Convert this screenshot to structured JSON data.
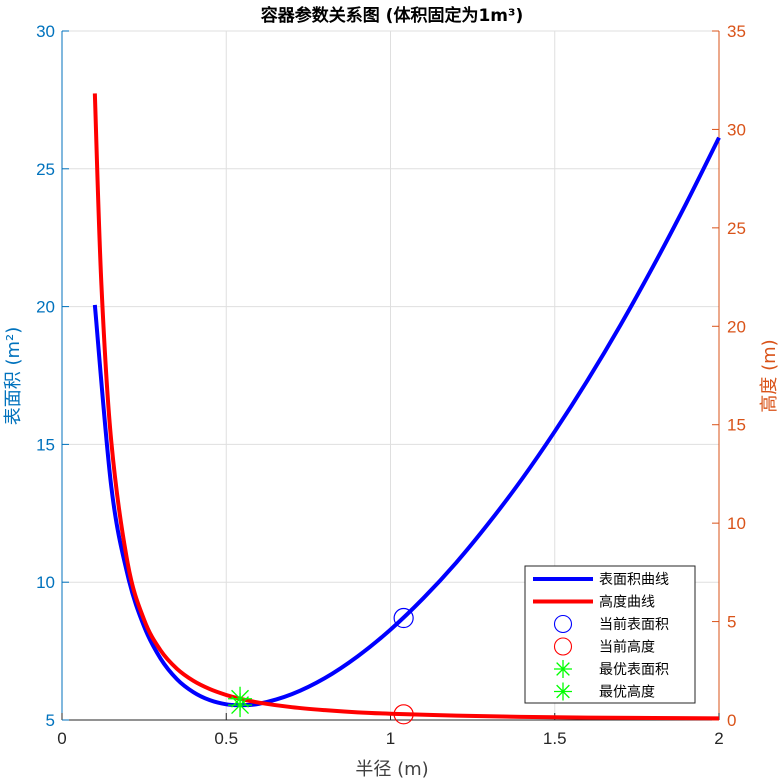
{
  "chart_data": {
    "type": "line",
    "title": "容器参数关系图 (体积固定为1m³)",
    "xlabel": "半径 (m)",
    "ylabel_left": "表面积 (m²)",
    "ylabel_right": "高度 (m)",
    "xlim": [
      0,
      2
    ],
    "ylim_left": [
      5,
      30
    ],
    "ylim_right": [
      0,
      35
    ],
    "x_ticks": [
      "0",
      "0.5",
      "1",
      "1.5",
      "2"
    ],
    "left_ticks": [
      "5",
      "10",
      "15",
      "20",
      "25",
      "30"
    ],
    "right_ticks": [
      "0",
      "5",
      "10",
      "15",
      "20",
      "25",
      "30",
      "35"
    ],
    "grid": true,
    "legend_position": "bottom-right",
    "colors": {
      "surface": "#0000FF",
      "height": "#FF0000",
      "optimal": "#00FF00",
      "left_axis": "#0072BD",
      "right_axis": "#D95319"
    },
    "series": [
      {
        "name": "表面积曲线",
        "axis": "left",
        "x": [
          0.1,
          0.15,
          0.2,
          0.25,
          0.3,
          0.35,
          0.4,
          0.45,
          0.5,
          0.542,
          0.6,
          0.7,
          0.8,
          0.9,
          1.0,
          1.1,
          1.2,
          1.3,
          1.4,
          1.5,
          1.6,
          1.7,
          1.8,
          1.9,
          2.0
        ],
        "y": [
          20.06,
          13.47,
          10.25,
          8.39,
          7.23,
          6.48,
          6.01,
          5.72,
          5.57,
          5.54,
          5.59,
          5.94,
          6.52,
          7.31,
          8.28,
          9.42,
          10.71,
          12.16,
          13.74,
          15.47,
          17.33,
          19.33,
          21.47,
          23.74,
          26.13
        ]
      },
      {
        "name": "高度曲线",
        "axis": "right",
        "x": [
          0.1,
          0.12,
          0.15,
          0.2,
          0.25,
          0.3,
          0.35,
          0.4,
          0.45,
          0.5,
          0.542,
          0.6,
          0.7,
          0.8,
          0.9,
          1.0,
          1.2,
          1.4,
          1.6,
          1.8,
          2.0
        ],
        "y": [
          31.83,
          22.1,
          14.15,
          7.96,
          5.09,
          3.54,
          2.6,
          1.99,
          1.57,
          1.27,
          1.08,
          0.88,
          0.65,
          0.5,
          0.39,
          0.32,
          0.22,
          0.16,
          0.12,
          0.1,
          0.08
        ]
      }
    ],
    "markers": [
      {
        "name": "当前表面积",
        "axis": "left",
        "x": 1.04,
        "y": 8.7,
        "symbol": "circle",
        "color": "#0000FF"
      },
      {
        "name": "当前高度",
        "axis": "right",
        "x": 1.04,
        "y": 0.29,
        "symbol": "circle",
        "color": "#FF0000"
      },
      {
        "name": "最优表面积",
        "axis": "left",
        "x": 0.542,
        "y": 5.54,
        "symbol": "asterisk",
        "color": "#00FF00"
      },
      {
        "name": "最优高度",
        "axis": "right",
        "x": 0.542,
        "y": 1.08,
        "symbol": "asterisk",
        "color": "#00FF00"
      }
    ],
    "legend": [
      {
        "label": "表面积曲线",
        "kind": "line",
        "color": "#0000FF"
      },
      {
        "label": "高度曲线",
        "kind": "line",
        "color": "#FF0000"
      },
      {
        "label": "当前表面积",
        "kind": "circle",
        "color": "#0000FF"
      },
      {
        "label": "当前高度",
        "kind": "circle",
        "color": "#FF0000"
      },
      {
        "label": "最优表面积",
        "kind": "asterisk",
        "color": "#00FF00"
      },
      {
        "label": "最优高度",
        "kind": "asterisk",
        "color": "#00FF00"
      }
    ]
  }
}
